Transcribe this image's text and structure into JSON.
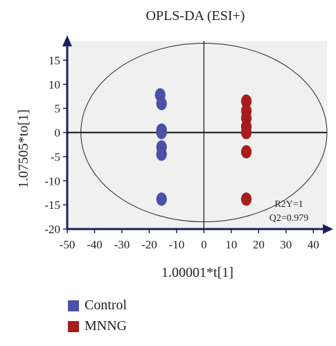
{
  "chart_data": {
    "type": "scatter",
    "title": "OPLS-DA (ESI+)",
    "xlabel": "1.00001*t[1]",
    "ylabel": "1.07505*to[1]",
    "xlim": [
      -50,
      45
    ],
    "ylim": [
      -20,
      19
    ],
    "xticks": [
      -50,
      -40,
      -30,
      -20,
      -10,
      0,
      10,
      20,
      30,
      40
    ],
    "yticks": [
      -20,
      -15,
      -10,
      -5,
      0,
      5,
      10,
      15
    ],
    "grid": false,
    "background": "#f0f0f0",
    "ellipse": {
      "cx": 0,
      "cy": 0,
      "rx": 45,
      "ry": 18.5
    },
    "annotations": [
      "R2Y=1",
      "Q2=0.979"
    ],
    "series": [
      {
        "name": "Control",
        "color": "#4b50ab",
        "points": [
          [
            -16,
            7.8
          ],
          [
            -15.5,
            6.0
          ],
          [
            -15.5,
            0.5
          ],
          [
            -15.5,
            0.0
          ],
          [
            -15.5,
            -3.0
          ],
          [
            -15.5,
            -4.5
          ],
          [
            -15.5,
            -13.8
          ]
        ]
      },
      {
        "name": "MNNG",
        "color": "#a81c1c",
        "points": [
          [
            15.5,
            6.5
          ],
          [
            15.5,
            4.5
          ],
          [
            15.5,
            3.0
          ],
          [
            15.5,
            1.2
          ],
          [
            15.5,
            0.0
          ],
          [
            15.5,
            -4.0
          ],
          [
            15.5,
            -13.8
          ]
        ]
      }
    ]
  }
}
